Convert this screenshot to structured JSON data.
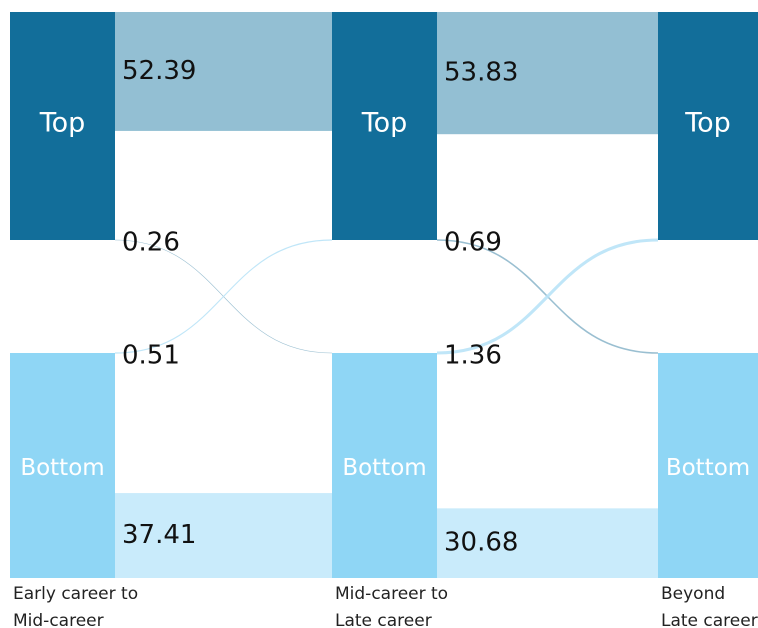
{
  "chart_data": {
    "type": "sankey",
    "stages": [
      "Early career to Mid-career",
      "Mid-career to Late career",
      "Beyond Late career"
    ],
    "nodes": [
      "Top",
      "Bottom"
    ],
    "node_colors": [
      "#126e9a",
      "#8fd6f5"
    ],
    "flows": [
      [
        [
          52.39,
          0.26
        ],
        [
          0.51,
          37.41
        ]
      ],
      [
        [
          53.83,
          0.69
        ],
        [
          1.36,
          30.68
        ]
      ]
    ],
    "flow_colors": [
      [
        "#93bfd3",
        "#8fb8cc"
      ],
      [
        "#b9e3f7",
        "#c9ebfb"
      ]
    ]
  }
}
